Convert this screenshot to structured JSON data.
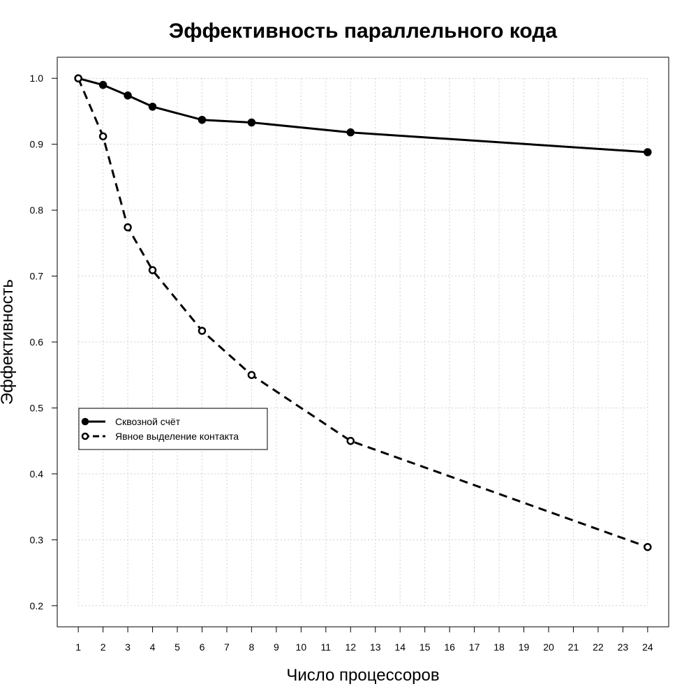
{
  "chart_data": {
    "type": "line",
    "title": "Эффективность параллельного кода",
    "xlabel": "Число процессоров",
    "ylabel": "Эффективность",
    "xlim": [
      0.15,
      24.85
    ],
    "ylim": [
      0.168,
      1.032
    ],
    "x_ticks": [
      1,
      2,
      3,
      4,
      5,
      6,
      7,
      8,
      9,
      10,
      11,
      12,
      13,
      14,
      15,
      16,
      17,
      18,
      19,
      20,
      21,
      22,
      23,
      24
    ],
    "y_ticks": [
      0.2,
      0.3,
      0.4,
      0.5,
      0.6,
      0.7,
      0.8,
      0.9,
      1.0
    ],
    "y_tick_labels": [
      "0.2",
      "0.3",
      "0.4",
      "0.5",
      "0.6",
      "0.7",
      "0.8",
      "0.9",
      "1.0"
    ],
    "grid": true,
    "legend_position": "middle-left",
    "series": [
      {
        "name": "Сквозной счёт",
        "line_style": "solid",
        "marker": "filled-circle",
        "color": "#000000",
        "x": [
          1,
          2,
          3,
          4,
          6,
          8,
          12,
          24
        ],
        "values": [
          1.0,
          0.99,
          0.974,
          0.957,
          0.937,
          0.933,
          0.918,
          0.888
        ]
      },
      {
        "name": "Явное выделение контакта",
        "line_style": "dashed",
        "marker": "open-circle",
        "color": "#000000",
        "x": [
          1,
          2,
          3,
          4,
          6,
          8,
          12,
          24
        ],
        "values": [
          1.0,
          0.912,
          0.774,
          0.709,
          0.617,
          0.55,
          0.45,
          0.289
        ]
      }
    ]
  }
}
